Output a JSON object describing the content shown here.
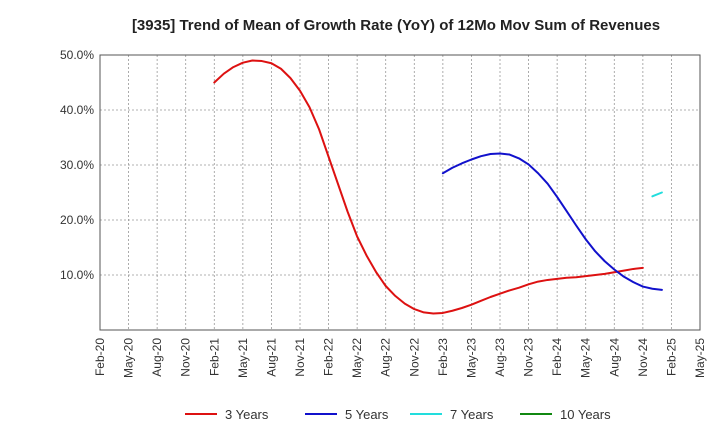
{
  "chart_data": {
    "type": "line",
    "title": "[3935]  Trend of Mean of Growth Rate (YoY) of 12Mo Mov Sum of Revenues",
    "xlabel": "",
    "ylabel": "",
    "ylim": [
      0,
      50
    ],
    "y_ticks": [
      {
        "value": 10,
        "label": "10.0%"
      },
      {
        "value": 20,
        "label": "20.0%"
      },
      {
        "value": 30,
        "label": "30.0%"
      },
      {
        "value": 40,
        "label": "40.0%"
      },
      {
        "value": 50,
        "label": "50.0%"
      }
    ],
    "x_ticks": [
      "Feb-20",
      "May-20",
      "Aug-20",
      "Nov-20",
      "Feb-21",
      "May-21",
      "Aug-21",
      "Nov-21",
      "Feb-22",
      "May-22",
      "Aug-22",
      "Nov-22",
      "Feb-23",
      "May-23",
      "Aug-23",
      "Nov-23",
      "Feb-24",
      "May-24",
      "Aug-24",
      "Nov-24",
      "Feb-25",
      "May-25"
    ],
    "x_start": "Feb-20",
    "x_end": "May-25",
    "grid": true,
    "legend_position": "bottom",
    "series": [
      {
        "name": "3 Years",
        "color": "#dd1111",
        "points": [
          [
            12,
            45.0
          ],
          [
            13,
            46.6
          ],
          [
            14,
            47.8
          ],
          [
            15,
            48.6
          ],
          [
            16,
            49.0
          ],
          [
            17,
            48.9
          ],
          [
            18,
            48.5
          ],
          [
            19,
            47.5
          ],
          [
            20,
            45.8
          ],
          [
            21,
            43.5
          ],
          [
            22,
            40.5
          ],
          [
            23,
            36.5
          ],
          [
            24,
            31.5
          ],
          [
            25,
            26.5
          ],
          [
            26,
            21.5
          ],
          [
            27,
            17.0
          ],
          [
            28,
            13.5
          ],
          [
            29,
            10.5
          ],
          [
            30,
            8.0
          ],
          [
            31,
            6.2
          ],
          [
            32,
            4.8
          ],
          [
            33,
            3.8
          ],
          [
            34,
            3.2
          ],
          [
            35,
            3.0
          ],
          [
            36,
            3.1
          ],
          [
            37,
            3.5
          ],
          [
            38,
            4.0
          ],
          [
            39,
            4.6
          ],
          [
            40,
            5.3
          ],
          [
            41,
            6.0
          ],
          [
            42,
            6.6
          ],
          [
            43,
            7.2
          ],
          [
            44,
            7.7
          ],
          [
            45,
            8.3
          ],
          [
            46,
            8.8
          ],
          [
            47,
            9.1
          ],
          [
            48,
            9.3
          ],
          [
            49,
            9.5
          ],
          [
            50,
            9.6
          ],
          [
            51,
            9.8
          ],
          [
            52,
            10.0
          ],
          [
            53,
            10.2
          ],
          [
            54,
            10.5
          ],
          [
            55,
            10.8
          ],
          [
            56,
            11.1
          ],
          [
            57,
            11.3
          ]
        ]
      },
      {
        "name": "5 Years",
        "color": "#1111cc",
        "points": [
          [
            36,
            28.5
          ],
          [
            37,
            29.5
          ],
          [
            38,
            30.3
          ],
          [
            39,
            31.0
          ],
          [
            40,
            31.6
          ],
          [
            41,
            32.0
          ],
          [
            42,
            32.1
          ],
          [
            43,
            31.9
          ],
          [
            44,
            31.2
          ],
          [
            45,
            30.1
          ],
          [
            46,
            28.5
          ],
          [
            47,
            26.6
          ],
          [
            48,
            24.2
          ],
          [
            49,
            21.6
          ],
          [
            50,
            19.0
          ],
          [
            51,
            16.5
          ],
          [
            52,
            14.3
          ],
          [
            53,
            12.5
          ],
          [
            54,
            11.0
          ],
          [
            55,
            9.7
          ],
          [
            56,
            8.7
          ],
          [
            57,
            7.9
          ],
          [
            58,
            7.5
          ],
          [
            59,
            7.3
          ]
        ]
      },
      {
        "name": "7 Years",
        "color": "#22dddd",
        "points": [
          [
            58,
            24.3
          ],
          [
            59,
            25.0
          ]
        ]
      },
      {
        "name": "10 Years",
        "color": "#118811",
        "points": []
      }
    ]
  }
}
